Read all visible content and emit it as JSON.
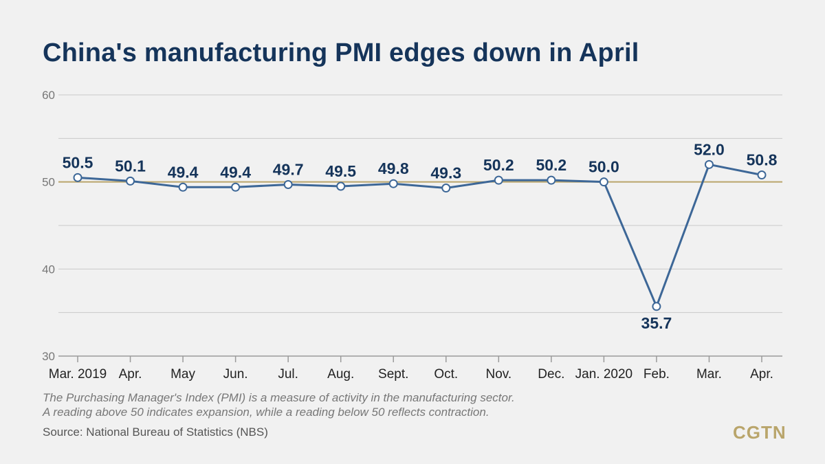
{
  "title": "China's manufacturing PMI edges down in April",
  "note_lines": [
    "The Purchasing Manager's Index (PMI) is a measure of activity in the manufacturing sector.",
    "A reading above 50 indicates expansion, while a reading below 50 reflects contraction."
  ],
  "source": "Source: National Bureau of Statistics (NBS)",
  "brand": "CGTN",
  "colors": {
    "line": "#3d6797",
    "label": "#15345a",
    "reference": "#b9a56b",
    "grid": "#c9c9c9",
    "axis_text": "#777777"
  },
  "chart_data": {
    "type": "line",
    "title": "China's manufacturing PMI edges down in April",
    "categories": [
      "Mar. 2019",
      "Apr.",
      "May",
      "Jun.",
      "Jul.",
      "Aug.",
      "Sept.",
      "Oct.",
      "Nov.",
      "Dec.",
      "Jan. 2020",
      "Feb.",
      "Mar.",
      "Apr."
    ],
    "values": [
      50.5,
      50.1,
      49.4,
      49.4,
      49.7,
      49.5,
      49.8,
      49.3,
      50.2,
      50.2,
      50.0,
      35.7,
      52.0,
      50.8
    ],
    "value_labels": [
      "50.5",
      "50.1",
      "49.4",
      "49.4",
      "49.7",
      "49.5",
      "49.8",
      "49.3",
      "50.2",
      "50.2",
      "50.0",
      "35.7",
      "52.0",
      "50.8"
    ],
    "ylim": [
      30,
      60
    ],
    "yticks": [
      30,
      40,
      50,
      60
    ],
    "reference_line": 50,
    "grid": true,
    "xlabel": "",
    "ylabel": ""
  }
}
